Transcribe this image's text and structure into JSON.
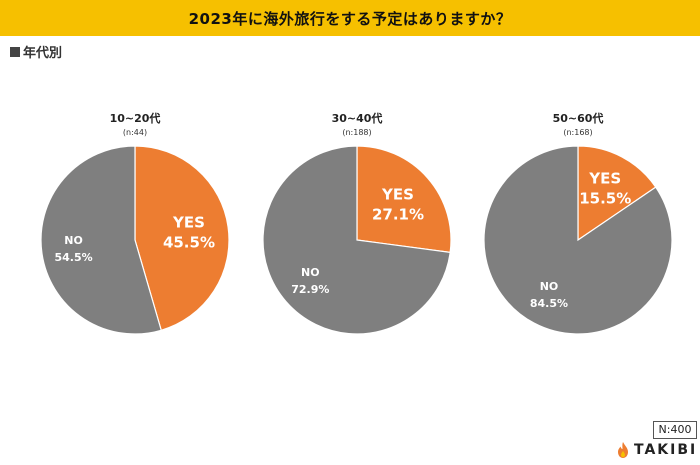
{
  "title": "2023年に海外旅行をする予定はありますか？",
  "subtitle": "年代別",
  "total_n": "N:400",
  "brand": "TAKIBI",
  "colors": {
    "yes": "#ed7d31",
    "no": "#7f7f7f",
    "title_bg": "#f6c000"
  },
  "chart_data": [
    {
      "type": "pie",
      "title": "10~20代",
      "subtitle": "(n:44)",
      "slices": [
        {
          "label": "YES",
          "value": 45.5,
          "display": "45.5%"
        },
        {
          "label": "NO",
          "value": 54.5,
          "display": "54.5%"
        }
      ]
    },
    {
      "type": "pie",
      "title": "30~40代",
      "subtitle": "(n:188)",
      "slices": [
        {
          "label": "YES",
          "value": 27.1,
          "display": "27.1%"
        },
        {
          "label": "NO",
          "value": 72.9,
          "display": "72.9%"
        }
      ]
    },
    {
      "type": "pie",
      "title": "50~60代",
      "subtitle": "(n:168)",
      "slices": [
        {
          "label": "YES",
          "value": 15.5,
          "display": "15.5%"
        },
        {
          "label": "NO",
          "value": 84.5,
          "display": "84.5%"
        }
      ]
    }
  ]
}
